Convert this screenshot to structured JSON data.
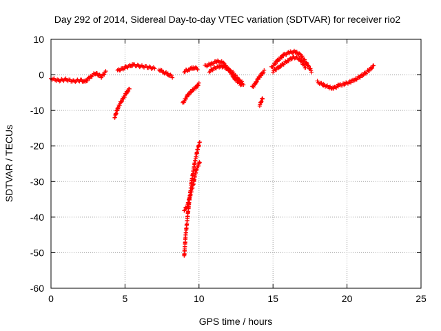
{
  "chart_data": {
    "type": "scatter",
    "title": "Day 292 of 2014, Sidereal Day-to-day VTEC variation (SDTVAR) for receiver rio2",
    "xlabel": "GPS time / hours",
    "ylabel": "SDTVAR / TECUs",
    "xlim": [
      0,
      25
    ],
    "ylim": [
      -60,
      10
    ],
    "xticks": [
      "0",
      "5",
      "10",
      "15",
      "20",
      "25"
    ],
    "yticks": [
      "10",
      "0",
      "-10",
      "-20",
      "-30",
      "-40",
      "-50",
      "-60"
    ],
    "grid": true,
    "marker": "+",
    "point_color": "#ff0000",
    "segments": [
      {
        "x": [
          0.0,
          0.5,
          1.0,
          1.5,
          2.0,
          2.3
        ],
        "y": [
          -1.0,
          -1.6,
          -1.3,
          -1.8,
          -1.5,
          -2.0
        ]
      },
      {
        "x": [
          2.3,
          2.6,
          3.0,
          3.4,
          3.7
        ],
        "y": [
          -2.0,
          -0.8,
          0.5,
          -0.5,
          0.8
        ]
      },
      {
        "x": [
          4.3,
          4.5,
          4.7,
          4.9,
          5.1,
          5.3
        ],
        "y": [
          -12.0,
          -9.5,
          -7.8,
          -6.5,
          -5.0,
          -4.0
        ]
      },
      {
        "x": [
          4.5,
          5.0,
          5.5,
          6.0,
          6.5,
          7.0
        ],
        "y": [
          1.2,
          2.0,
          2.8,
          2.5,
          2.2,
          1.8
        ]
      },
      {
        "x": [
          7.3,
          7.6,
          7.9,
          8.2
        ],
        "y": [
          1.5,
          0.8,
          0.2,
          -0.5
        ]
      },
      {
        "x": [
          9.0,
          9.1,
          9.3,
          9.5,
          9.7,
          9.9,
          10.05
        ],
        "y": [
          -51.0,
          -45.0,
          -37.0,
          -30.0,
          -25.0,
          -21.0,
          -19.0
        ]
      },
      {
        "x": [
          9.0,
          9.2,
          9.4,
          9.6,
          9.8,
          10.05
        ],
        "y": [
          -38.0,
          -37.0,
          -34.0,
          -31.0,
          -27.0,
          -24.5
        ]
      },
      {
        "x": [
          8.9,
          9.2,
          9.5,
          9.8,
          10.0
        ],
        "y": [
          -8.0,
          -6.0,
          -4.5,
          -3.5,
          -2.5
        ]
      },
      {
        "x": [
          9.0,
          9.3,
          9.6,
          9.9
        ],
        "y": [
          1.0,
          1.5,
          2.0,
          1.8
        ]
      },
      {
        "x": [
          10.4,
          10.8,
          11.2,
          11.6,
          12.0,
          12.4,
          12.9
        ],
        "y": [
          2.5,
          3.0,
          3.8,
          3.5,
          1.5,
          -1.0,
          -3.0
        ]
      },
      {
        "x": [
          10.7,
          11.1,
          11.5,
          11.9,
          12.3,
          12.7,
          13.0
        ],
        "y": [
          1.0,
          2.0,
          2.5,
          1.8,
          0.5,
          -1.5,
          -2.5
        ]
      },
      {
        "x": [
          13.6,
          13.8,
          14.0,
          14.2,
          14.4
        ],
        "y": [
          -3.5,
          -2.5,
          -1.0,
          0.0,
          1.0
        ]
      },
      {
        "x": [
          14.1,
          14.2,
          14.3
        ],
        "y": [
          -8.5,
          -7.5,
          -6.5
        ]
      },
      {
        "x": [
          14.9,
          15.3,
          15.7,
          16.1,
          16.5,
          16.9,
          17.3,
          17.6
        ],
        "y": [
          2.0,
          4.0,
          5.5,
          6.3,
          6.5,
          5.5,
          3.0,
          1.0
        ]
      },
      {
        "x": [
          15.0,
          15.5,
          16.0,
          16.4,
          16.8,
          17.2
        ],
        "y": [
          1.0,
          2.5,
          4.0,
          5.0,
          4.5,
          2.0
        ]
      },
      {
        "x": [
          18.0,
          18.4,
          18.8,
          19.1,
          19.4
        ],
        "y": [
          -2.0,
          -2.8,
          -3.5,
          -3.8,
          -3.0
        ]
      },
      {
        "x": [
          19.4,
          19.8,
          20.2,
          20.6,
          21.0,
          21.4,
          21.8
        ],
        "y": [
          -3.0,
          -2.6,
          -2.0,
          -1.2,
          -0.2,
          1.0,
          2.5
        ]
      }
    ]
  }
}
